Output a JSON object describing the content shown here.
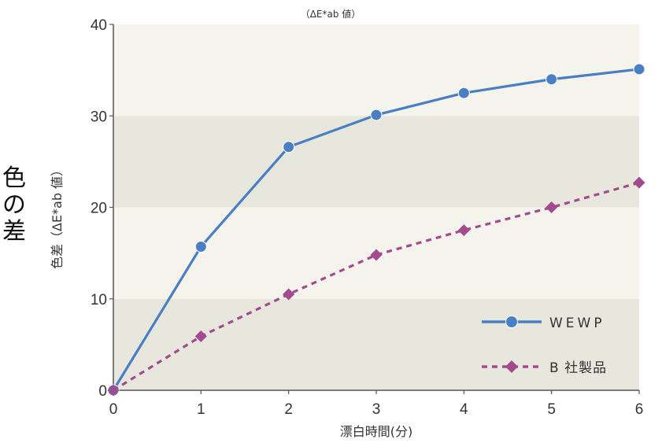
{
  "side_title": [
    "色",
    "の",
    "差"
  ],
  "chart_data": {
    "type": "line",
    "top_note": "（ΔE*ab 値）",
    "xlabel": "漂白時間(分)",
    "ylabel": "色差（ΔE*ab 値）",
    "x": [
      0,
      1,
      2,
      3,
      4,
      5,
      6
    ],
    "xlim": [
      0,
      6
    ],
    "ylim": [
      0,
      40
    ],
    "yticks": [
      0,
      10,
      20,
      30,
      40
    ],
    "xticks": [
      0,
      1,
      2,
      3,
      4,
      5,
      6
    ],
    "legend_position": "bottom-right",
    "grid": "alternating horizontal bands",
    "series": [
      {
        "name": "WEWP",
        "values": [
          0,
          15.7,
          26.6,
          30.1,
          32.5,
          34.0,
          35.1
        ],
        "color": "#4a7fc4",
        "style": "solid",
        "marker": "circle"
      },
      {
        "name": "B 社製品",
        "values": [
          0,
          5.9,
          10.5,
          14.8,
          17.5,
          20.0,
          22.7
        ],
        "color": "#a24b8e",
        "style": "dashed",
        "marker": "diamond"
      }
    ],
    "colors": {
      "band_light": "#f4f3ec",
      "band_dark": "#e8e7de",
      "axis": "#555555"
    }
  }
}
